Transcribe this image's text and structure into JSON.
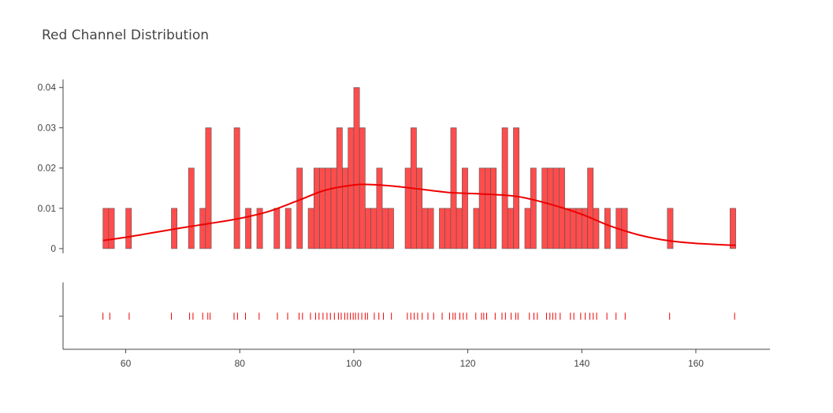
{
  "chart_data": {
    "type": "bar",
    "title": "Red Channel Distribution",
    "xlabel": "",
    "ylabel": "",
    "xlim": [
      49,
      173
    ],
    "ylim": [
      0,
      0.042
    ],
    "x_ticks": [
      60,
      80,
      100,
      120,
      140,
      160
    ],
    "y_ticks": [
      0,
      0.01,
      0.02,
      0.03,
      0.04
    ],
    "y_tick_labels": [
      "0",
      "0.01",
      "0.02",
      "0.03",
      "0.04"
    ],
    "bin_width": 1,
    "colors": {
      "bar": "#ff4d4d",
      "line": "#ee0000",
      "rug": "#ee0000"
    },
    "histogram": {
      "bin_starts": [
        56,
        57,
        60,
        68,
        71,
        73,
        74,
        79,
        81,
        83,
        86,
        88,
        90,
        92,
        93,
        94,
        95,
        96,
        97,
        98,
        99,
        100,
        101,
        102,
        103,
        104,
        105,
        106,
        109,
        110,
        111,
        112,
        113,
        115,
        116,
        117,
        118,
        119,
        121,
        122,
        123,
        124,
        126,
        127,
        128,
        130,
        131,
        133,
        134,
        135,
        136,
        137,
        138,
        139,
        140,
        141,
        142,
        144,
        146,
        147,
        155,
        166
      ],
      "density": [
        0.01,
        0.01,
        0.01,
        0.01,
        0.02,
        0.01,
        0.03,
        0.03,
        0.01,
        0.01,
        0.01,
        0.01,
        0.02,
        0.01,
        0.02,
        0.02,
        0.02,
        0.02,
        0.03,
        0.02,
        0.03,
        0.04,
        0.03,
        0.01,
        0.01,
        0.02,
        0.01,
        0.01,
        0.02,
        0.03,
        0.02,
        0.01,
        0.01,
        0.01,
        0.01,
        0.03,
        0.01,
        0.02,
        0.01,
        0.02,
        0.02,
        0.02,
        0.03,
        0.01,
        0.03,
        0.01,
        0.02,
        0.02,
        0.02,
        0.02,
        0.02,
        0.01,
        0.01,
        0.01,
        0.01,
        0.02,
        0.01,
        0.01,
        0.01,
        0.01,
        0.01,
        0.01
      ]
    },
    "kde": {
      "x": [
        56,
        60,
        65,
        70,
        75,
        80,
        85,
        90,
        95,
        100,
        103,
        107,
        112,
        117,
        122,
        127,
        130,
        135,
        140,
        145,
        150,
        155,
        160,
        167
      ],
      "y": [
        0.002,
        0.0028,
        0.004,
        0.0052,
        0.0063,
        0.0075,
        0.0092,
        0.0118,
        0.0145,
        0.0158,
        0.0159,
        0.0155,
        0.0147,
        0.0139,
        0.0136,
        0.0132,
        0.0126,
        0.0108,
        0.0085,
        0.0056,
        0.0034,
        0.002,
        0.0013,
        0.0008
      ]
    },
    "rug": [
      56,
      57.2,
      60.6,
      68,
      71.2,
      71.8,
      73.5,
      74.4,
      74.8,
      79,
      79.6,
      81,
      83.4,
      86.6,
      88.4,
      90.4,
      91,
      92.4,
      93.3,
      93.9,
      94.6,
      95.3,
      95.9,
      96.6,
      97.3,
      97.8,
      98.4,
      98.9,
      99.4,
      99.9,
      100.3,
      100.8,
      101.4,
      102,
      102.4,
      103.6,
      104.4,
      105.2,
      106.6,
      109.4,
      110,
      110.6,
      111.2,
      112,
      113,
      114,
      115.5,
      116.8,
      117.4,
      117.8,
      118.6,
      119.2,
      119.8,
      121.4,
      122.4,
      122.8,
      123.3,
      124.8,
      126,
      126.6,
      127.6,
      128.4,
      128.8,
      130.8,
      131.6,
      132.2,
      133.8,
      134.4,
      134.9,
      135.4,
      136.2,
      138,
      138.6,
      139.8,
      140.6,
      141.4,
      142,
      142.6,
      144.4,
      146,
      147.6,
      155.4,
      166.8
    ]
  }
}
